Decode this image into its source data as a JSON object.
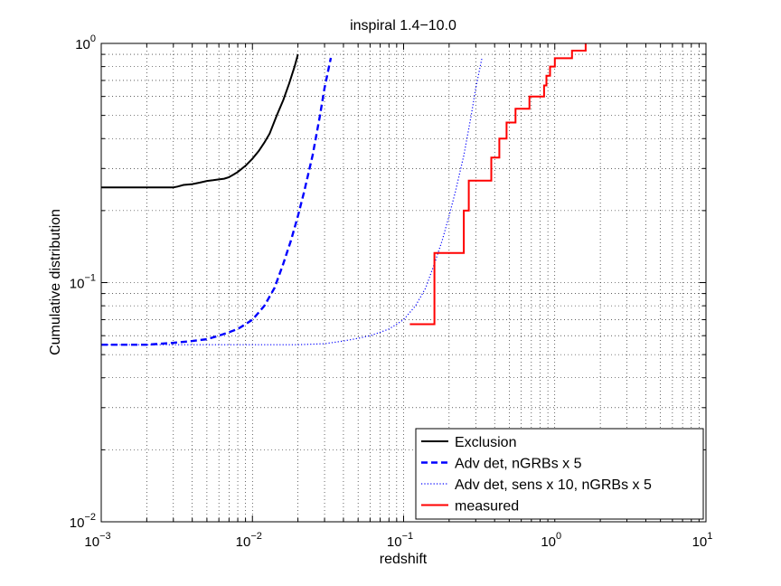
{
  "chart_data": {
    "type": "line",
    "title": "inspiral 1.4−10.0",
    "xlabel": "redshift",
    "ylabel": "Cumulative distribution",
    "xscale": "log",
    "yscale": "log",
    "xlim": [
      0.001,
      10
    ],
    "ylim": [
      0.01,
      1
    ],
    "grid": true,
    "legend_position": "bottom-right",
    "x_ticks": [
      {
        "base": "10",
        "exp": "−3",
        "value": 0.001
      },
      {
        "base": "10",
        "exp": "−2",
        "value": 0.01
      },
      {
        "base": "10",
        "exp": "−1",
        "value": 0.1
      },
      {
        "base": "10",
        "exp": "0",
        "value": 1
      },
      {
        "base": "10",
        "exp": "1",
        "value": 10
      }
    ],
    "y_ticks": [
      {
        "base": "10",
        "exp": "−2",
        "value": 0.01
      },
      {
        "base": "10",
        "exp": "−1",
        "value": 0.1
      },
      {
        "base": "10",
        "exp": "0",
        "value": 1
      }
    ],
    "series": [
      {
        "name": "Exclusion",
        "color": "#000000",
        "style": "solid",
        "x": [
          0.001,
          0.002,
          0.003,
          0.0032,
          0.0035,
          0.004,
          0.0045,
          0.005,
          0.0055,
          0.006,
          0.0065,
          0.007,
          0.0075,
          0.008,
          0.009,
          0.01,
          0.011,
          0.012,
          0.013,
          0.0145,
          0.016,
          0.0175,
          0.019,
          0.02
        ],
        "y": [
          0.25,
          0.25,
          0.25,
          0.252,
          0.256,
          0.258,
          0.262,
          0.266,
          0.268,
          0.27,
          0.272,
          0.276,
          0.283,
          0.29,
          0.308,
          0.33,
          0.355,
          0.385,
          0.42,
          0.5,
          0.58,
          0.68,
          0.8,
          0.9
        ]
      },
      {
        "name": "Adv det, nGRBs x 5",
        "color": "#0000ff",
        "style": "dashed",
        "x": [
          0.001,
          0.002,
          0.003,
          0.004,
          0.005,
          0.006,
          0.007,
          0.008,
          0.009,
          0.01,
          0.011,
          0.012,
          0.014,
          0.016,
          0.018,
          0.02,
          0.022,
          0.025,
          0.028,
          0.03,
          0.033
        ],
        "y": [
          0.055,
          0.055,
          0.056,
          0.057,
          0.058,
          0.06,
          0.062,
          0.064,
          0.067,
          0.07,
          0.075,
          0.08,
          0.095,
          0.12,
          0.15,
          0.19,
          0.24,
          0.34,
          0.5,
          0.65,
          0.87
        ]
      },
      {
        "name": "Adv det, sens x 10, nGRBs x 5",
        "color": "#0000ff",
        "style": "dotted",
        "x": [
          0.001,
          0.01,
          0.02,
          0.03,
          0.04,
          0.05,
          0.06,
          0.07,
          0.08,
          0.09,
          0.1,
          0.11,
          0.12,
          0.14,
          0.16,
          0.18,
          0.2,
          0.22,
          0.25,
          0.28,
          0.3,
          0.33
        ],
        "y": [
          0.055,
          0.055,
          0.055,
          0.0555,
          0.057,
          0.0585,
          0.06,
          0.062,
          0.064,
          0.067,
          0.07,
          0.075,
          0.08,
          0.095,
          0.12,
          0.15,
          0.19,
          0.24,
          0.34,
          0.5,
          0.65,
          0.87
        ]
      },
      {
        "name": "measured",
        "color": "#ff0000",
        "style": "solid",
        "step": true,
        "x": [
          0.11,
          0.16,
          0.16,
          0.25,
          0.25,
          0.27,
          0.27,
          0.3,
          0.3,
          0.38,
          0.38,
          0.43,
          0.43,
          0.48,
          0.48,
          0.55,
          0.55,
          0.68,
          0.68,
          0.85,
          0.85,
          0.88,
          0.88,
          0.93,
          0.93,
          1.0,
          1.0,
          1.3,
          1.3,
          1.6,
          1.6
        ],
        "y": [
          0.067,
          0.067,
          0.133,
          0.133,
          0.2,
          0.2,
          0.267,
          0.267,
          0.267,
          0.267,
          0.333,
          0.333,
          0.4,
          0.4,
          0.467,
          0.467,
          0.533,
          0.533,
          0.6,
          0.6,
          0.667,
          0.667,
          0.733,
          0.733,
          0.8,
          0.8,
          0.867,
          0.867,
          0.933,
          0.933,
          1.0
        ]
      }
    ]
  }
}
